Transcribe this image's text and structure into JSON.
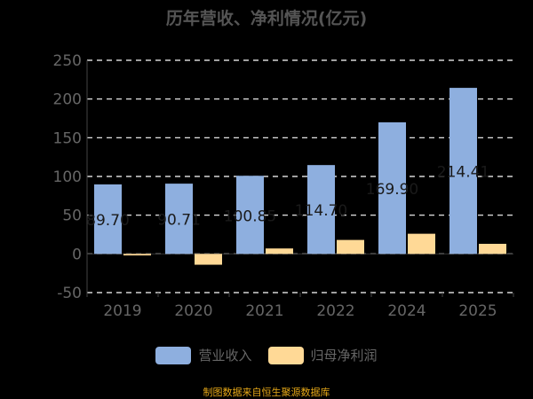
{
  "colors": {
    "revenue": "#8eafdf",
    "profit": "#ffd996",
    "text": "#666666",
    "grid": "#ffffff",
    "source": "#e6a817"
  },
  "source_note": "制图数据来自恒生聚源数据库",
  "chart_data": {
    "type": "bar",
    "title": "历年营收、净利情况(亿元)",
    "categories": [
      "2019",
      "2020",
      "2021",
      "2022",
      "2024",
      "2025"
    ],
    "series": [
      {
        "name": "营业收入",
        "values": [
          89.7,
          90.71,
          100.85,
          114.7,
          169.9,
          214.41
        ],
        "labels": [
          "89.70",
          "90.71",
          "100.85",
          "114.70",
          "169.90",
          "214.41"
        ]
      },
      {
        "name": "归母净利润",
        "values": [
          -2,
          -14,
          7,
          18,
          26,
          13
        ]
      }
    ],
    "ylim": [
      -50,
      250
    ],
    "yticks": [
      -50,
      0,
      50,
      100,
      150,
      200,
      250
    ],
    "grid": true,
    "legend_position": "bottom"
  }
}
